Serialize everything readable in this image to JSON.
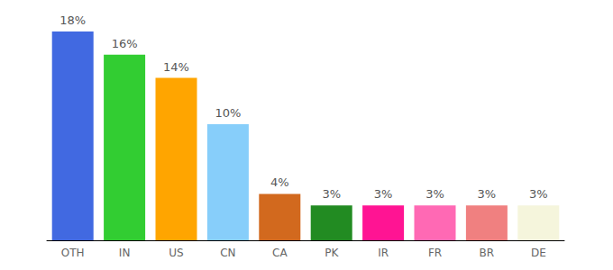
{
  "chart_data": {
    "type": "bar",
    "categories": [
      "OTH",
      "IN",
      "US",
      "CN",
      "CA",
      "PK",
      "IR",
      "FR",
      "BR",
      "DE"
    ],
    "values": [
      18,
      16,
      14,
      10,
      4,
      3,
      3,
      3,
      3,
      3
    ],
    "value_labels": [
      "18%",
      "16%",
      "14%",
      "10%",
      "4%",
      "3%",
      "3%",
      "3%",
      "3%",
      "3%"
    ],
    "colors": [
      "#4169e1",
      "#32cd32",
      "#ffa500",
      "#87cefa",
      "#d2691e",
      "#228b22",
      "#ff1493",
      "#ff69b4",
      "#f08080",
      "#f5f5dc"
    ],
    "ylim": [
      0,
      18
    ],
    "grid": false,
    "data_labels": true,
    "tick_labels": "x"
  }
}
